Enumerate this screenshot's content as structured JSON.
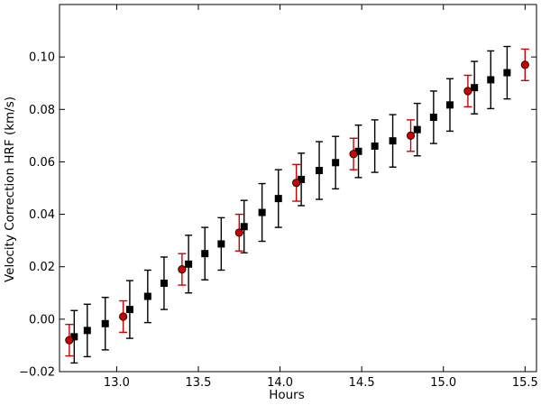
{
  "chart_data": {
    "type": "scatter",
    "title": "",
    "xlabel": "Hours",
    "ylabel": "Velocity Correction HRF (km/s)",
    "xlim": [
      12.65,
      15.57
    ],
    "ylim": [
      -0.02,
      0.12
    ],
    "grid": false,
    "legend": "none",
    "x_ticks": [
      13.0,
      13.5,
      14.0,
      14.5,
      15.0,
      15.5
    ],
    "x_tick_labels": [
      "13.0",
      "13.5",
      "14.0",
      "14.5",
      "15.0",
      "15.5"
    ],
    "y_ticks": [
      -0.02,
      0.0,
      0.02,
      0.04,
      0.06,
      0.08,
      0.1
    ],
    "y_tick_labels": [
      "−0.02",
      "0.00",
      "0.02",
      "0.04",
      "0.06",
      "0.08",
      "0.10"
    ],
    "series": [
      {
        "marker": "square",
        "color": "#000000",
        "points": [
          {
            "x": 12.74,
            "y": -0.0067,
            "err": 0.01
          },
          {
            "x": 12.82,
            "y": -0.0043,
            "err": 0.01
          },
          {
            "x": 12.93,
            "y": -0.0017,
            "err": 0.01
          },
          {
            "x": 13.08,
            "y": 0.0037,
            "err": 0.011
          },
          {
            "x": 13.19,
            "y": 0.0087,
            "err": 0.01
          },
          {
            "x": 13.29,
            "y": 0.0137,
            "err": 0.01
          },
          {
            "x": 13.44,
            "y": 0.021,
            "err": 0.011
          },
          {
            "x": 13.54,
            "y": 0.025,
            "err": 0.01
          },
          {
            "x": 13.64,
            "y": 0.0287,
            "err": 0.01
          },
          {
            "x": 13.78,
            "y": 0.0353,
            "err": 0.01
          },
          {
            "x": 13.89,
            "y": 0.0407,
            "err": 0.011
          },
          {
            "x": 13.99,
            "y": 0.046,
            "err": 0.011
          },
          {
            "x": 14.13,
            "y": 0.0533,
            "err": 0.01
          },
          {
            "x": 14.24,
            "y": 0.0567,
            "err": 0.011
          },
          {
            "x": 14.34,
            "y": 0.0597,
            "err": 0.01
          },
          {
            "x": 14.48,
            "y": 0.064,
            "err": 0.01
          },
          {
            "x": 14.58,
            "y": 0.066,
            "err": 0.01
          },
          {
            "x": 14.69,
            "y": 0.068,
            "err": 0.01
          },
          {
            "x": 14.84,
            "y": 0.0723,
            "err": 0.01
          },
          {
            "x": 14.94,
            "y": 0.077,
            "err": 0.01
          },
          {
            "x": 15.04,
            "y": 0.0817,
            "err": 0.01
          },
          {
            "x": 15.19,
            "y": 0.0883,
            "err": 0.01
          },
          {
            "x": 15.29,
            "y": 0.0913,
            "err": 0.011
          },
          {
            "x": 15.39,
            "y": 0.094,
            "err": 0.01
          }
        ]
      },
      {
        "marker": "circle",
        "color": "#cc0000",
        "points": [
          {
            "x": 12.71,
            "y": -0.008,
            "err": 0.006
          },
          {
            "x": 13.04,
            "y": 0.001,
            "err": 0.006
          },
          {
            "x": 13.4,
            "y": 0.019,
            "err": 0.006
          },
          {
            "x": 13.75,
            "y": 0.033,
            "err": 0.007
          },
          {
            "x": 14.1,
            "y": 0.052,
            "err": 0.007
          },
          {
            "x": 14.45,
            "y": 0.063,
            "err": 0.006
          },
          {
            "x": 14.8,
            "y": 0.07,
            "err": 0.006
          },
          {
            "x": 15.15,
            "y": 0.087,
            "err": 0.006
          },
          {
            "x": 15.5,
            "y": 0.097,
            "err": 0.006
          }
        ]
      }
    ]
  }
}
